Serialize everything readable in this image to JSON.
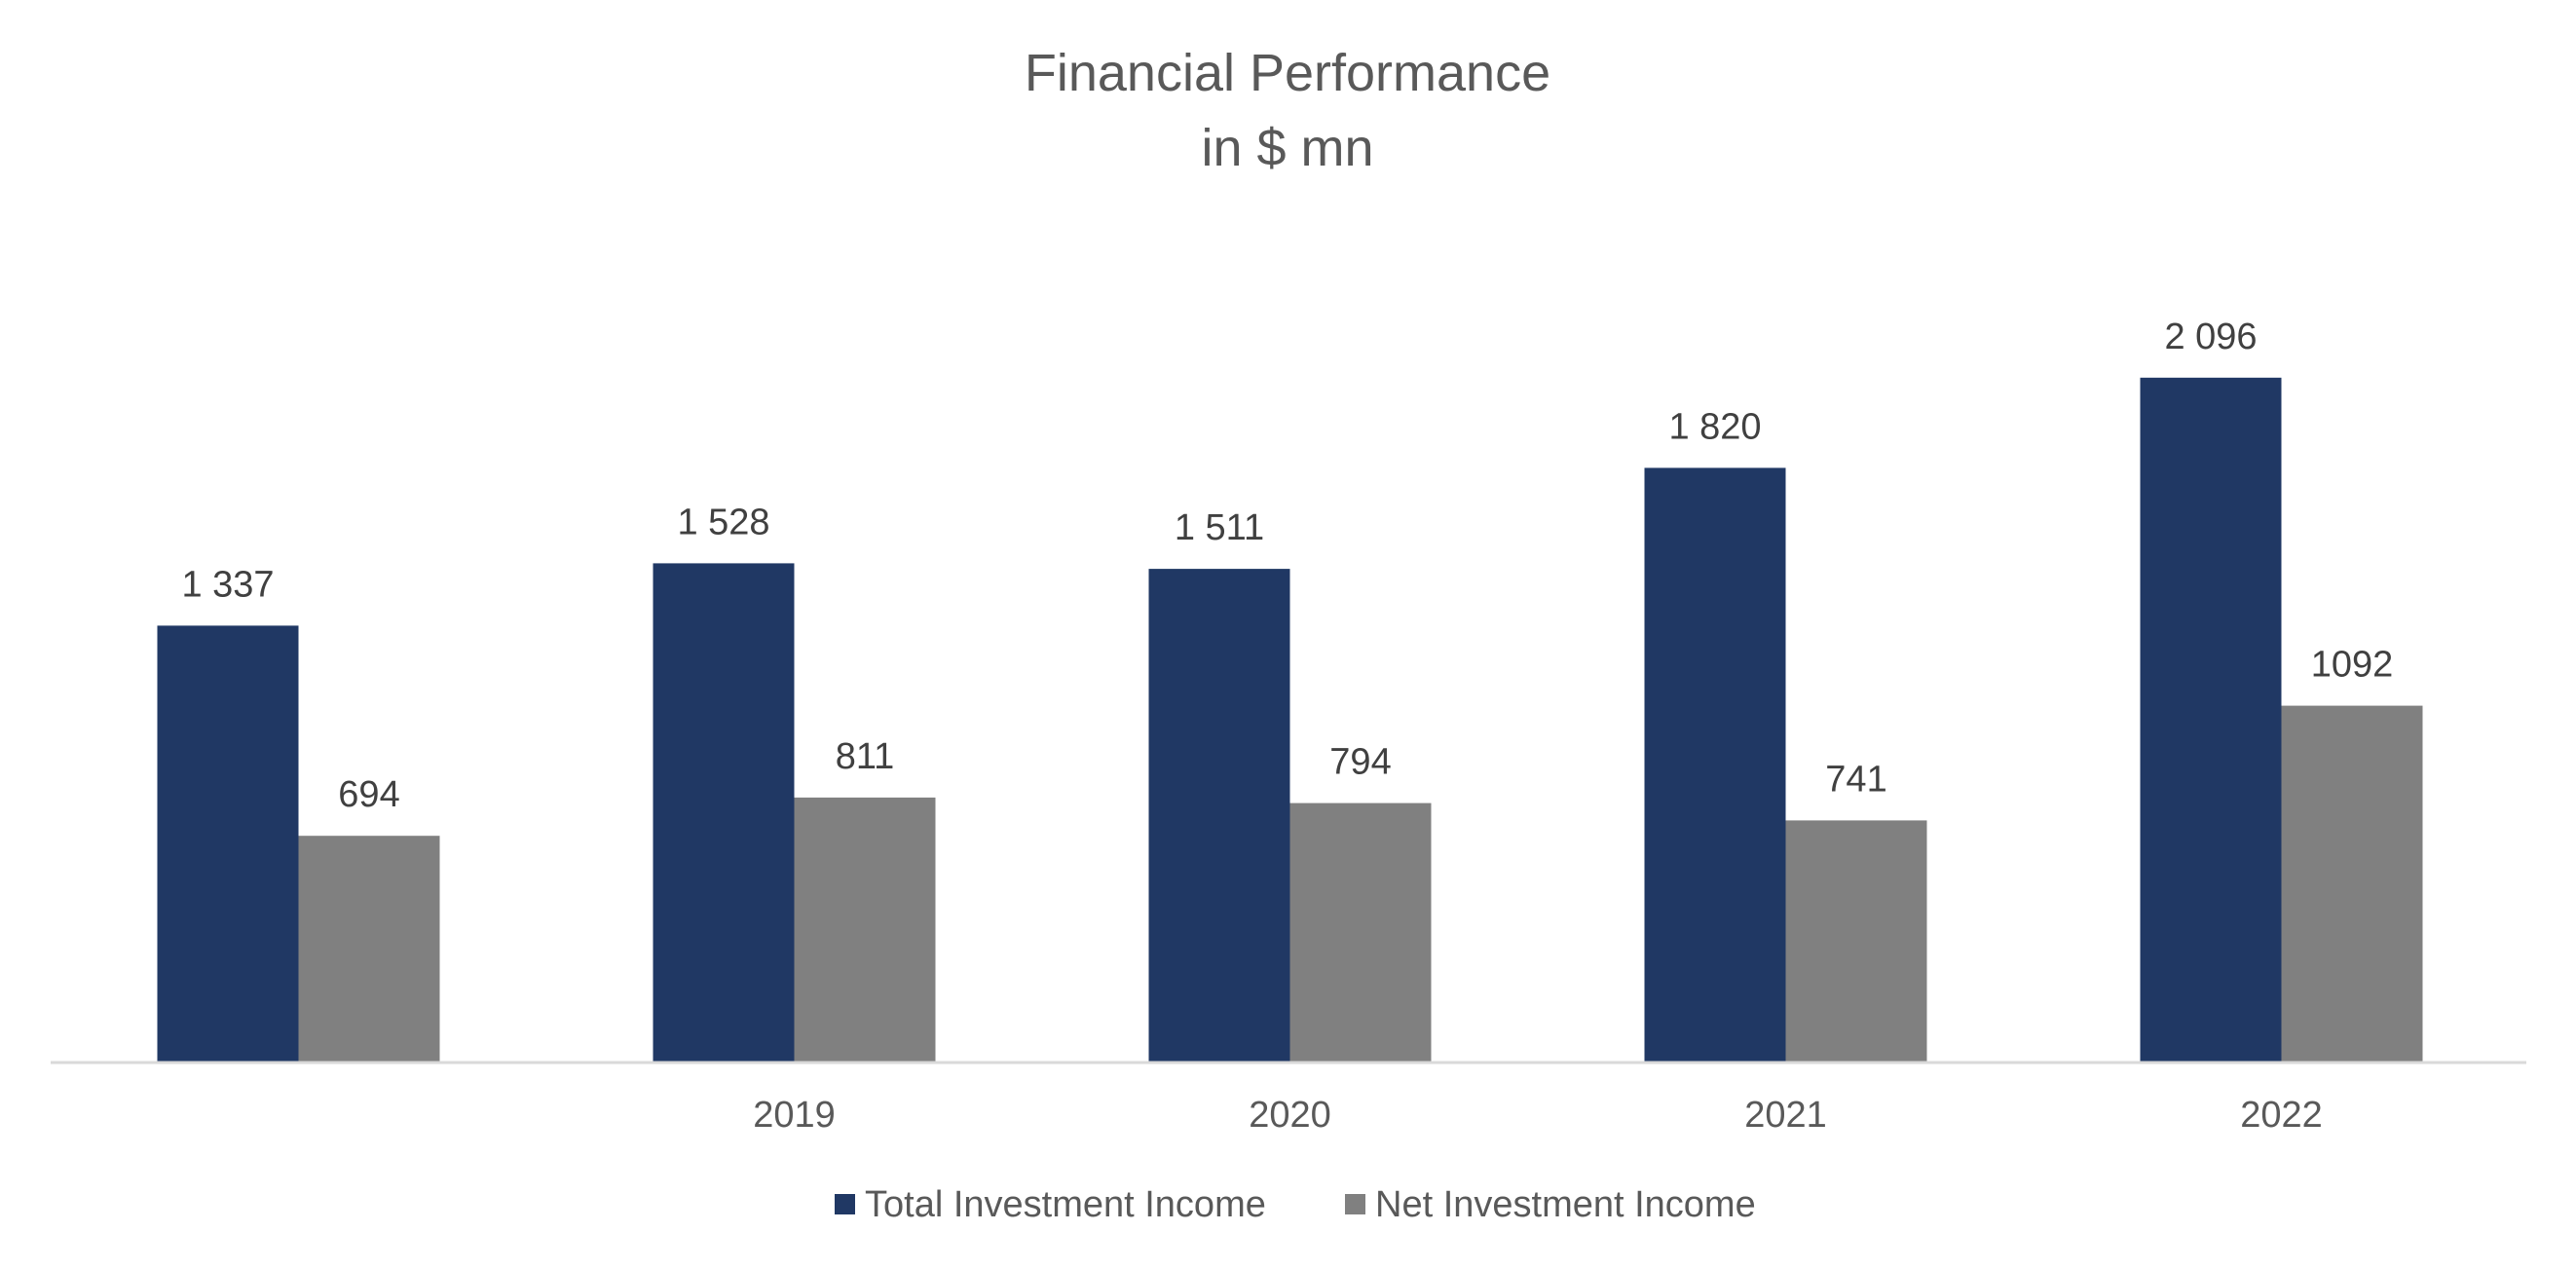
{
  "chart_data": {
    "type": "bar",
    "title": "Financial Performance",
    "subtitle": "in $ mn",
    "categories": [
      "",
      "2019",
      "2020",
      "2021",
      "2022"
    ],
    "series": [
      {
        "name": "Total Investment Income",
        "color": "#203864",
        "values": [
          1337,
          1528,
          1511,
          1820,
          2096
        ],
        "labels": [
          "1 337",
          "1 528",
          "1 511",
          "1 820",
          "2 096"
        ]
      },
      {
        "name": "Net Investment Income",
        "color": "#808080",
        "values": [
          694,
          811,
          794,
          741,
          1092
        ],
        "labels": [
          "694",
          "811",
          "794",
          "741",
          "1092"
        ]
      }
    ],
    "ylim": [
      0,
      2300
    ],
    "xlabel": "",
    "ylabel": "",
    "grid": false,
    "legend": "bottom"
  }
}
